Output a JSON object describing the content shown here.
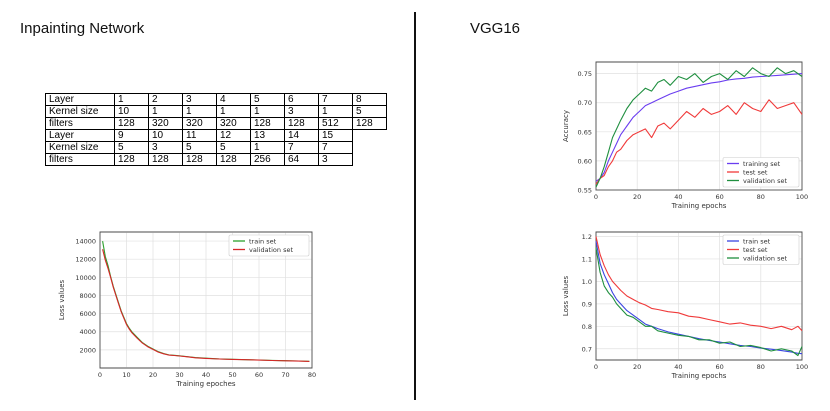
{
  "headings": {
    "left": "Inpainting Network",
    "right": "VGG16"
  },
  "layer_table": {
    "rows": [
      {
        "label": "Layer",
        "values": [
          "1",
          "2",
          "3",
          "4",
          "5",
          "6",
          "7",
          "8"
        ]
      },
      {
        "label": "Kernel size",
        "values": [
          "10",
          "1",
          "1",
          "1",
          "1",
          "3",
          "1",
          "5"
        ]
      },
      {
        "label": "filters",
        "values": [
          "128",
          "320",
          "320",
          "320",
          "128",
          "128",
          "512",
          "128"
        ]
      },
      {
        "label": "Layer",
        "values": [
          "9",
          "10",
          "11",
          "12",
          "13",
          "14",
          "15"
        ]
      },
      {
        "label": "Kernel size",
        "values": [
          "5",
          "3",
          "5",
          "5",
          "1",
          "7",
          "7"
        ]
      },
      {
        "label": "filters",
        "values": [
          "128",
          "128",
          "128",
          "128",
          "256",
          "64",
          "3"
        ]
      }
    ]
  },
  "chart_data": [
    {
      "id": "inpainting-loss",
      "type": "line",
      "title": "",
      "xlabel": "Training epoches",
      "ylabel": "Loss values",
      "xlim": [
        0,
        80
      ],
      "ylim": [
        0,
        15000
      ],
      "xticks": [
        0,
        10,
        20,
        30,
        40,
        50,
        60,
        70,
        80
      ],
      "yticks": [
        2000,
        4000,
        6000,
        8000,
        10000,
        12000,
        14000
      ],
      "grid": true,
      "legend_position": "top-right",
      "x": [
        1,
        2,
        3,
        4,
        5,
        6,
        7,
        8,
        9,
        10,
        11,
        12,
        14,
        16,
        18,
        20,
        22,
        24,
        26,
        28,
        30,
        33,
        36,
        40,
        45,
        50,
        55,
        60,
        65,
        70,
        75,
        79
      ],
      "series": [
        {
          "name": "train set",
          "color": "#2ca02c",
          "values": [
            14000,
            12300,
            11300,
            10100,
            9000,
            8100,
            7200,
            6300,
            5600,
            4900,
            4400,
            4000,
            3400,
            2800,
            2400,
            2100,
            1800,
            1600,
            1450,
            1400,
            1350,
            1250,
            1150,
            1080,
            1000,
            960,
            920,
            880,
            840,
            800,
            770,
            740
          ]
        },
        {
          "name": "validation set",
          "color": "#d62728",
          "values": [
            13100,
            11900,
            11000,
            10000,
            8900,
            8000,
            7100,
            6200,
            5500,
            4800,
            4300,
            3900,
            3300,
            2750,
            2350,
            2050,
            1750,
            1570,
            1420,
            1380,
            1320,
            1230,
            1130,
            1060,
            990,
            950,
            910,
            870,
            830,
            790,
            760,
            730
          ]
        }
      ]
    },
    {
      "id": "vgg-accuracy",
      "type": "line",
      "title": "",
      "xlabel": "Training epochs",
      "ylabel": "Accuracy",
      "xlim": [
        0,
        100
      ],
      "ylim": [
        0.55,
        0.77
      ],
      "xticks": [
        0,
        20,
        40,
        60,
        80,
        100
      ],
      "yticks": [
        0.55,
        0.6,
        0.65,
        0.7,
        0.75
      ],
      "grid": true,
      "legend_position": "bottom-right",
      "x": [
        0,
        2,
        4,
        6,
        8,
        10,
        12,
        15,
        18,
        21,
        24,
        27,
        30,
        33,
        36,
        40,
        44,
        48,
        52,
        56,
        60,
        64,
        68,
        72,
        76,
        80,
        84,
        88,
        92,
        96,
        100
      ],
      "series": [
        {
          "name": "training set",
          "color": "#6a3df0",
          "values": [
            0.565,
            0.57,
            0.58,
            0.6,
            0.615,
            0.63,
            0.645,
            0.66,
            0.675,
            0.685,
            0.695,
            0.7,
            0.705,
            0.71,
            0.715,
            0.72,
            0.725,
            0.728,
            0.731,
            0.734,
            0.736,
            0.739,
            0.741,
            0.742,
            0.744,
            0.745,
            0.746,
            0.747,
            0.748,
            0.749,
            0.75
          ]
        },
        {
          "name": "test set",
          "color": "#f03a3a",
          "values": [
            0.56,
            0.57,
            0.575,
            0.59,
            0.6,
            0.615,
            0.62,
            0.635,
            0.645,
            0.65,
            0.655,
            0.64,
            0.66,
            0.665,
            0.655,
            0.67,
            0.685,
            0.675,
            0.69,
            0.68,
            0.685,
            0.695,
            0.68,
            0.7,
            0.69,
            0.685,
            0.705,
            0.69,
            0.695,
            0.7,
            0.68
          ]
        },
        {
          "name": "validation set",
          "color": "#1f8f3f",
          "values": [
            0.555,
            0.57,
            0.59,
            0.615,
            0.64,
            0.655,
            0.67,
            0.69,
            0.705,
            0.715,
            0.725,
            0.72,
            0.735,
            0.74,
            0.73,
            0.745,
            0.74,
            0.75,
            0.735,
            0.745,
            0.75,
            0.74,
            0.755,
            0.745,
            0.76,
            0.75,
            0.745,
            0.76,
            0.75,
            0.755,
            0.745
          ]
        }
      ]
    },
    {
      "id": "vgg-loss",
      "type": "line",
      "title": "",
      "xlabel": "Training epochs",
      "ylabel": "Loss values",
      "xlim": [
        0,
        100
      ],
      "ylim": [
        0.65,
        1.22
      ],
      "xticks": [
        0,
        20,
        40,
        60,
        80,
        100
      ],
      "yticks": [
        0.7,
        0.8,
        0.9,
        1.0,
        1.1,
        1.2
      ],
      "grid": true,
      "legend_position": "top-right",
      "x": [
        0,
        2,
        4,
        6,
        8,
        10,
        12,
        15,
        18,
        21,
        24,
        27,
        30,
        35,
        40,
        45,
        50,
        55,
        60,
        65,
        70,
        75,
        80,
        85,
        90,
        95,
        98,
        100
      ],
      "series": [
        {
          "name": "train set",
          "color": "#3a45e0",
          "values": [
            1.18,
            1.08,
            1.03,
            0.99,
            0.95,
            0.92,
            0.9,
            0.87,
            0.85,
            0.83,
            0.81,
            0.8,
            0.79,
            0.775,
            0.765,
            0.755,
            0.745,
            0.737,
            0.73,
            0.722,
            0.715,
            0.71,
            0.703,
            0.698,
            0.692,
            0.685,
            0.68,
            0.678
          ]
        },
        {
          "name": "test set",
          "color": "#f03a3a",
          "values": [
            1.2,
            1.12,
            1.07,
            1.03,
            1.0,
            0.98,
            0.96,
            0.935,
            0.92,
            0.905,
            0.895,
            0.88,
            0.875,
            0.865,
            0.86,
            0.845,
            0.84,
            0.83,
            0.82,
            0.81,
            0.815,
            0.805,
            0.8,
            0.79,
            0.8,
            0.785,
            0.8,
            0.78
          ]
        },
        {
          "name": "validation set",
          "color": "#1f8f3f",
          "values": [
            1.15,
            1.04,
            0.98,
            0.95,
            0.93,
            0.9,
            0.88,
            0.85,
            0.84,
            0.82,
            0.8,
            0.8,
            0.78,
            0.77,
            0.76,
            0.755,
            0.74,
            0.74,
            0.725,
            0.73,
            0.71,
            0.715,
            0.705,
            0.69,
            0.7,
            0.69,
            0.67,
            0.71
          ]
        }
      ]
    }
  ]
}
